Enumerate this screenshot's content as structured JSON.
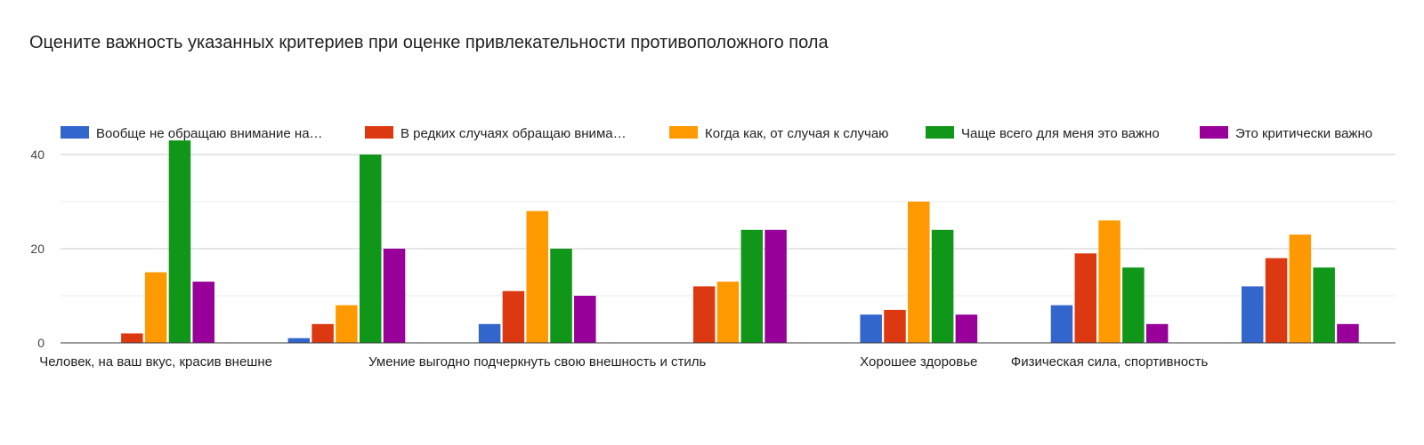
{
  "chart_data": {
    "type": "bar",
    "title": "Оцените важность указанных критериев при оценке привлекательности противоположного пола",
    "xlabel": "",
    "ylabel": "",
    "ylim": [
      0,
      43
    ],
    "yticks": [
      0,
      20,
      40
    ],
    "grid": true,
    "legend_position": "top",
    "categories": [
      "Человек, на ваш вкус, красив внешне",
      "",
      "Умение выгодно подчеркнуть свою внешность и стиль",
      "",
      "Хорошее здоровье",
      "Физическая сила, спортивность",
      ""
    ],
    "series": [
      {
        "name": "Вообще не обращаю внимание на…",
        "color": "#3366cc",
        "values": [
          0,
          1,
          4,
          0,
          6,
          8,
          12
        ]
      },
      {
        "name": "В редких случаях обращаю внима…",
        "color": "#dc3912",
        "values": [
          2,
          4,
          11,
          12,
          7,
          19,
          18
        ]
      },
      {
        "name": "Когда как, от случая к случаю",
        "color": "#ff9900",
        "values": [
          15,
          8,
          28,
          13,
          30,
          26,
          23
        ]
      },
      {
        "name": "Чаще всего для меня это важно",
        "color": "#109618",
        "values": [
          43,
          40,
          20,
          24,
          24,
          16,
          16
        ]
      },
      {
        "name": "Это критически важно",
        "color": "#990099",
        "values": [
          13,
          20,
          10,
          24,
          6,
          4,
          4
        ]
      }
    ]
  }
}
